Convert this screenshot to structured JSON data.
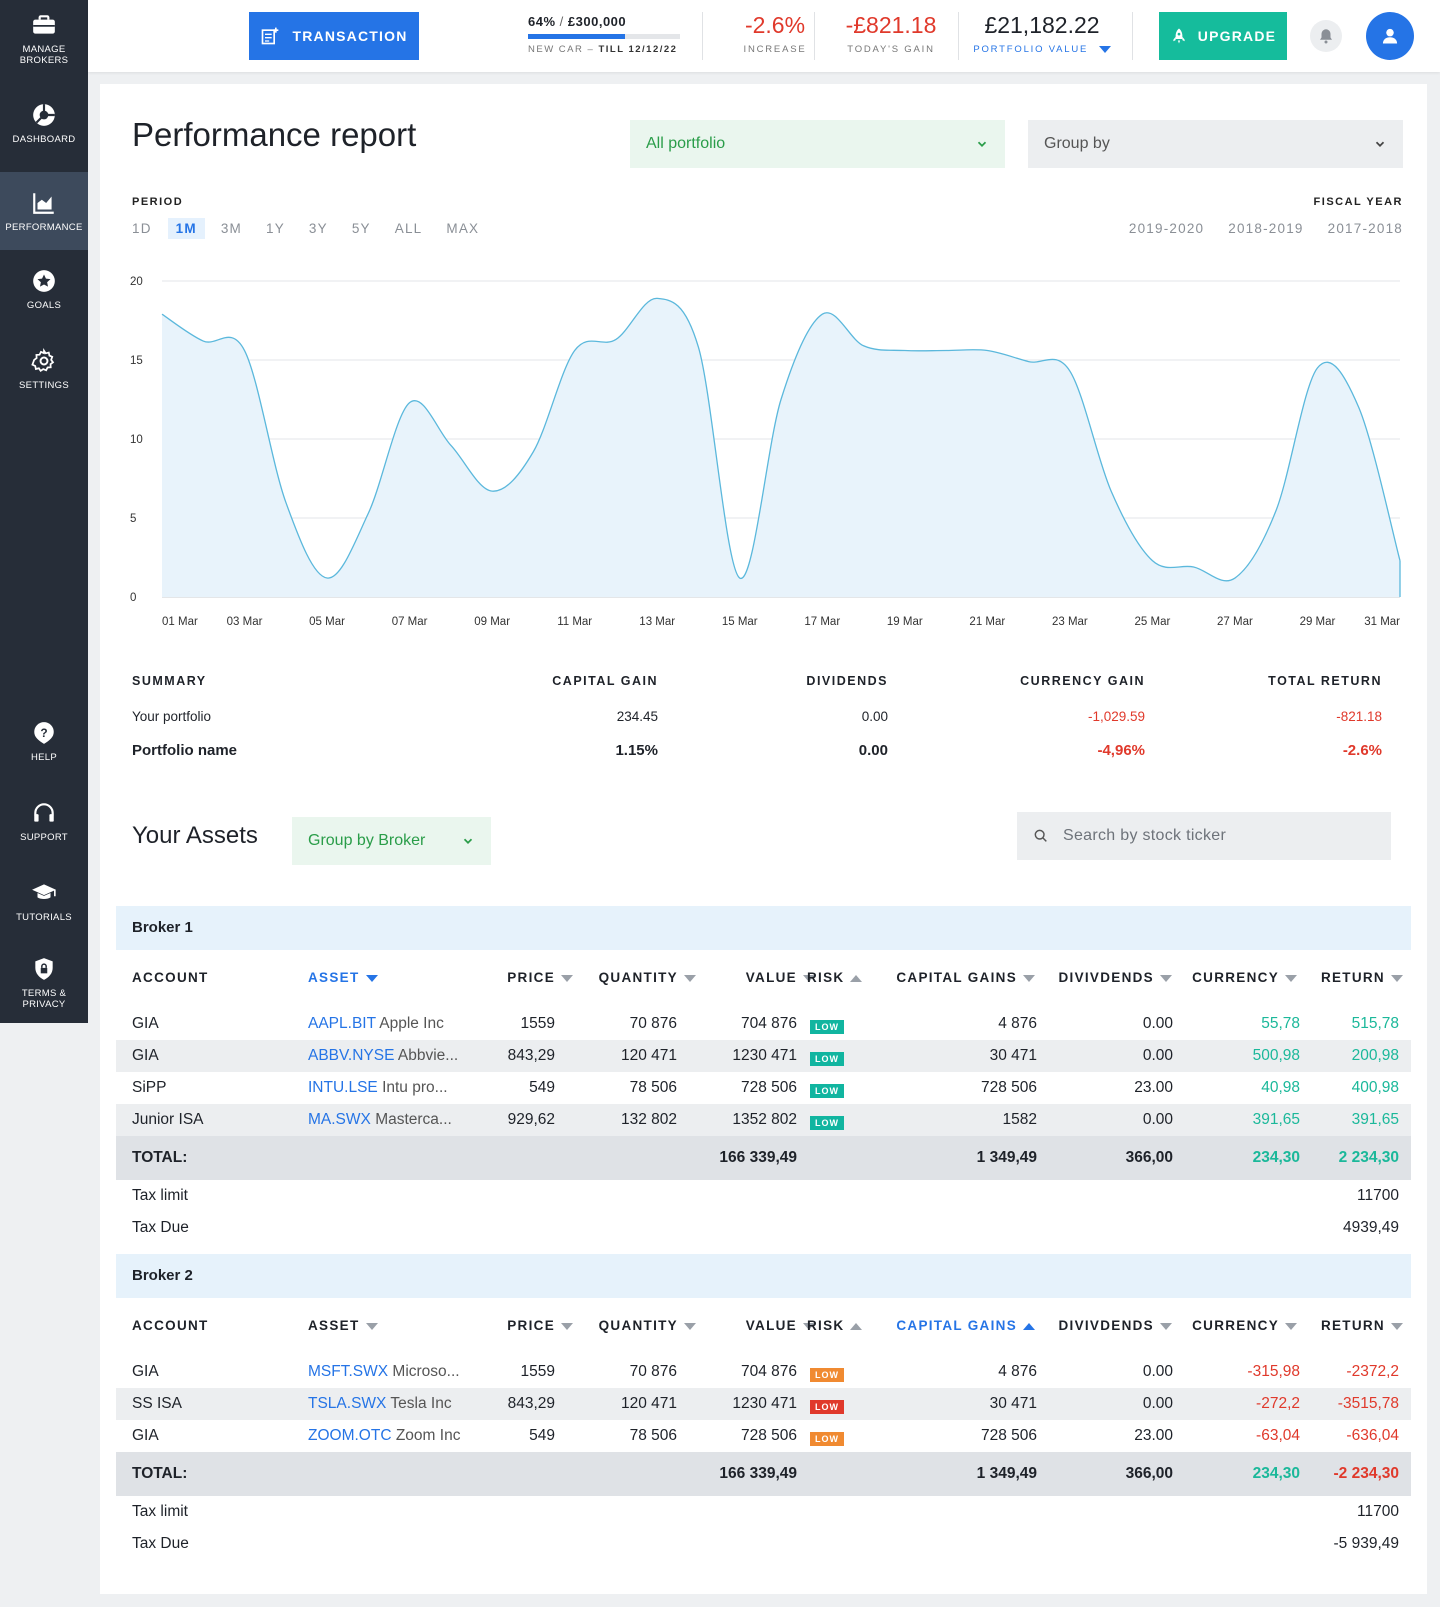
{
  "sidebar": {
    "items": [
      {
        "label": "MANAGE BROKERS",
        "icon": "briefcase-icon"
      },
      {
        "label": "DASHBOARD",
        "icon": "pie-chart-icon"
      },
      {
        "label": "PERFORMANCE",
        "icon": "area-chart-icon",
        "active": true
      },
      {
        "label": "GOALS",
        "icon": "star-icon"
      },
      {
        "label": "SETTINGS",
        "icon": "gear-icon"
      },
      {
        "label": "HELP",
        "icon": "question-icon"
      },
      {
        "label": "SUPPORT",
        "icon": "headset-icon"
      },
      {
        "label": "TUTORIALS",
        "icon": "graduation-cap-icon"
      },
      {
        "label": "TERMS & PRIVACY",
        "icon": "shield-lock-icon"
      }
    ]
  },
  "topbar": {
    "transaction_label": "TRANSACTION",
    "goal": {
      "percent": "64%",
      "sep": "/",
      "amount": "£300,000",
      "progress": 0.64,
      "name": "NEW CAR",
      "dash": "–",
      "till": "TILL 12/12/22"
    },
    "increase": {
      "value": "-2.6%",
      "label": "INCREASE"
    },
    "todays_gain": {
      "value": "-£821.18",
      "label": "TODAY'S GAIN"
    },
    "portfolio_value": {
      "value": "£21,182.22",
      "label": "PORTFOLIO VALUE"
    },
    "upgrade_label": "UPGRADE"
  },
  "report": {
    "title": "Performance report",
    "portfolio_select": "All portfolio",
    "group_select": "Group by",
    "period_label": "PERIOD",
    "periods": [
      "1D",
      "1M",
      "3M",
      "1Y",
      "3Y",
      "5Y",
      "ALL",
      "MAX"
    ],
    "active_period": "1M",
    "fiscal_label": "FISCAL YEAR",
    "fiscal_years": [
      "2019-2020",
      "2018-2019",
      "2017-2018"
    ]
  },
  "chart_data": {
    "type": "area",
    "x": [
      "01 Mar",
      "02 Mar",
      "03 Mar",
      "04 Mar",
      "05 Mar",
      "06 Mar",
      "07 Mar",
      "08 Mar",
      "09 Mar",
      "10 Mar",
      "11 Mar",
      "12 Mar",
      "13 Mar",
      "14 Mar",
      "15 Mar",
      "16 Mar",
      "17 Mar",
      "18 Mar",
      "19 Mar",
      "20 Mar",
      "21 Mar",
      "22 Mar",
      "23 Mar",
      "24 Mar",
      "25 Mar",
      "26 Mar",
      "27 Mar",
      "28 Mar",
      "29 Mar",
      "30 Mar",
      "31 Mar"
    ],
    "values": [
      17.9,
      16.2,
      15.6,
      6.0,
      1.2,
      5.3,
      12.3,
      9.6,
      6.7,
      9.2,
      15.6,
      16.3,
      18.9,
      15.8,
      1.2,
      12.5,
      17.9,
      15.9,
      15.6,
      15.6,
      15.6,
      14.9,
      14.3,
      6.7,
      2.3,
      1.9,
      1.2,
      5.5,
      14.5,
      12.0,
      2.3
    ],
    "x_tick_labels": [
      "01 Mar",
      "03 Mar",
      "05 Mar",
      "07 Mar",
      "09 Mar",
      "11 Mar",
      "13 Mar",
      "15 Mar",
      "17 Mar",
      "19 Mar",
      "21 Mar",
      "23 Mar",
      "25 Mar",
      "27 Mar",
      "29 Mar",
      "31 Mar"
    ],
    "y_ticks": [
      0,
      5,
      10,
      15,
      20
    ],
    "ylim": [
      0,
      20
    ],
    "grid": true,
    "line_color": "#5bb8dc",
    "fill_color": "#e8f3fb"
  },
  "summary": {
    "headers": [
      "SUMMARY",
      "CAPITAL GAIN",
      "DIVIDENDS",
      "CURRENCY GAIN",
      "TOTAL RETURN"
    ],
    "rows": [
      [
        "Your portfolio",
        "234.45",
        "0.00",
        "-1,029.59",
        "-821.18"
      ],
      [
        "Portfolio name",
        "1.15%",
        "0.00",
        "-4,96%",
        "-2.6%"
      ]
    ]
  },
  "assets": {
    "title": "Your Assets",
    "group_select": "Group by Broker",
    "search_placeholder": "Search by stock ticker"
  },
  "table_headers": [
    "ACCOUNT",
    "ASSET",
    "PRICE",
    "QUANTITY",
    "VALUE",
    "RISK",
    "CAPITAL GAINS",
    "DIVIVDENDS",
    "CURRENCY",
    "RETURN"
  ],
  "brokers": [
    {
      "name": "Broker 1",
      "rows": [
        {
          "account": "GIA",
          "ticker": "AAPL.BIT",
          "name": "Apple Inc",
          "price": "1559",
          "quantity": "70 876",
          "value": "704 876",
          "risk": "LOW",
          "capital_gains": "4 876",
          "dividends": "0.00",
          "currency": "55,78",
          "return": "515,78"
        },
        {
          "account": "GIA",
          "ticker": "ABBV.NYSE",
          "name": "Abbvie...",
          "price": "843,29",
          "quantity": "120 471",
          "value": "1230 471",
          "risk": "LOW",
          "capital_gains": "30 471",
          "dividends": "0.00",
          "currency": "500,98",
          "return": "200,98"
        },
        {
          "account": "SiPP",
          "ticker": "INTU.LSE",
          "name": "Intu pro...",
          "price": "549",
          "quantity": "78 506",
          "value": "728 506",
          "risk": "LOW",
          "capital_gains": "728 506",
          "dividends": "23.00",
          "currency": "40,98",
          "return": "400,98"
        },
        {
          "account": "Junior ISA",
          "ticker": "MA.SWX",
          "name": "Masterca...",
          "price": "929,62",
          "quantity": "132 802",
          "value": "1352 802",
          "risk": "LOW",
          "capital_gains": "1582",
          "dividends": "0.00",
          "currency": "391,65",
          "return": "391,65"
        }
      ],
      "total": {
        "label": "TOTAL:",
        "value": "166 339,49",
        "capital_gains": "1 349,49",
        "dividends": "366,00",
        "currency": "234,30",
        "return": "2 234,30"
      },
      "tax_limit": {
        "label": "Tax limit",
        "value": "11700"
      },
      "tax_due": {
        "label": "Tax Due",
        "value": "4939,49"
      }
    },
    {
      "name": "Broker 2",
      "rows": [
        {
          "account": "GIA",
          "ticker": "MSFT.SWX",
          "name": "Microso...",
          "price": "1559",
          "quantity": "70 876",
          "value": "704 876",
          "risk": "LOW",
          "capital_gains": "4 876",
          "dividends": "0.00",
          "currency": "-315,98",
          "return": "-2372,2"
        },
        {
          "account": "SS ISA",
          "ticker": "TSLA.SWX",
          "name": "Tesla Inc",
          "price": "843,29",
          "quantity": "120 471",
          "value": "1230 471",
          "risk": "LOW",
          "capital_gains": "30 471",
          "dividends": "0.00",
          "currency": "-272,2",
          "return": "-3515,78"
        },
        {
          "account": "GIA",
          "ticker": "ZOOM.OTC",
          "name": "Zoom Inc",
          "price": "549",
          "quantity": "78 506",
          "value": "728 506",
          "risk": "LOW",
          "capital_gains": "728 506",
          "dividends": "23.00",
          "currency": "-63,04",
          "return": "-636,04"
        }
      ],
      "total": {
        "label": "TOTAL:",
        "value": "166 339,49",
        "capital_gains": "1 349,49",
        "dividends": "366,00",
        "currency": "234,30",
        "return": "-2 234,30"
      },
      "tax_limit": {
        "label": "Tax limit",
        "value": "11700"
      },
      "tax_due": {
        "label": "Tax Due",
        "value": "-5 939,49"
      }
    }
  ],
  "colors": {
    "accent": "#2574e6",
    "upgrade": "#15bc9c",
    "negative": "#e0392b",
    "positive": "#1bb89a",
    "sidebar": "#262d38"
  }
}
